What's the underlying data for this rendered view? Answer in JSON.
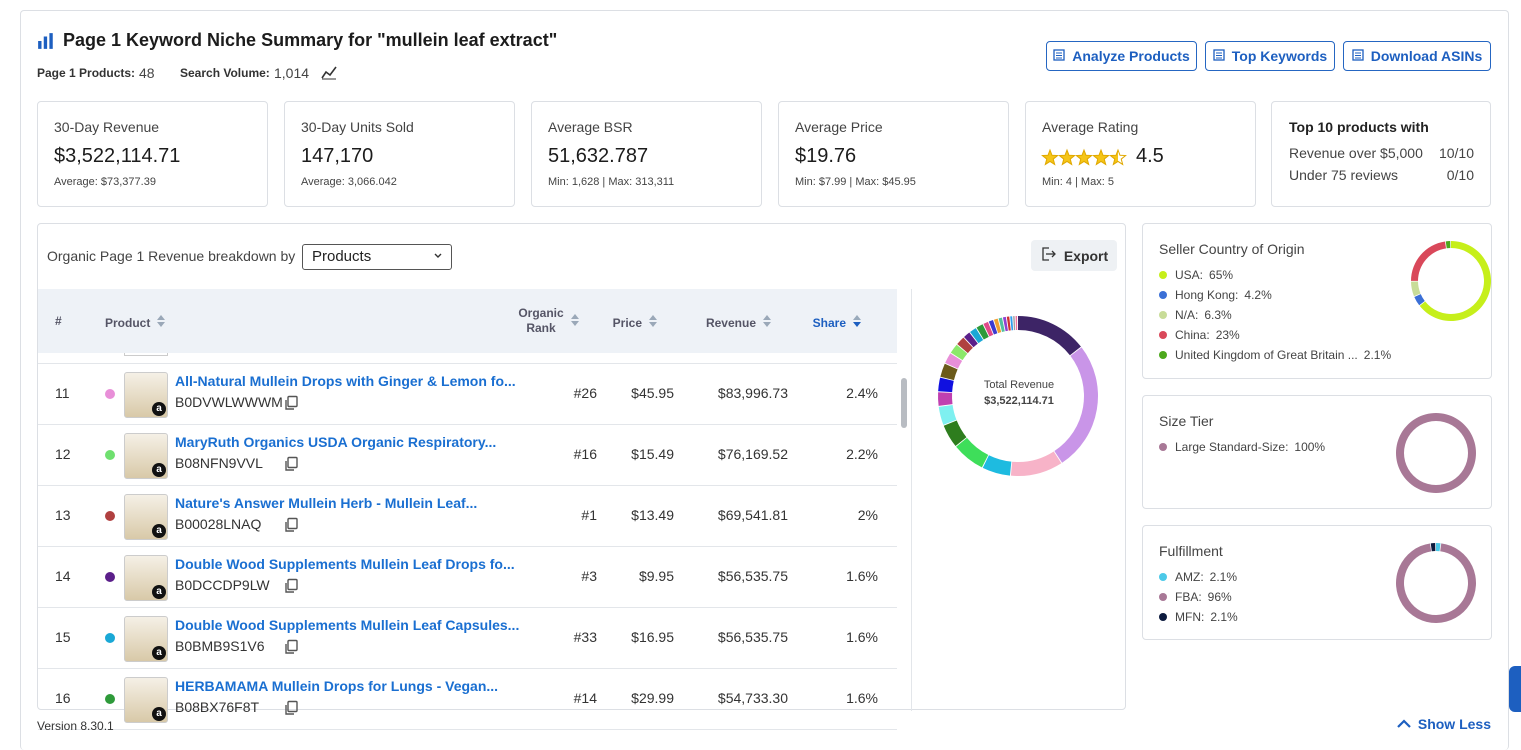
{
  "header": {
    "title": "Page 1 Keyword Niche Summary for \"mullein leaf extract\"",
    "products_label": "Page 1 Products:",
    "products": "48",
    "volume_label": "Search Volume:",
    "volume": "1,014"
  },
  "buttons": [
    "Analyze Products",
    "Top Keywords",
    "Download ASINs"
  ],
  "stats": [
    {
      "label": "30-Day Revenue",
      "value": "$3,522,114.71",
      "sub": "Average: $73,377.39"
    },
    {
      "label": "30-Day Units Sold",
      "value": "147,170",
      "sub": "Average: 3,066.042"
    },
    {
      "label": "Average BSR",
      "value": "51,632.787",
      "sub": "Min: 1,628 | Max: 313,311"
    },
    {
      "label": "Average Price",
      "value": "$19.76",
      "sub": "Min: $7.99 | Max: $45.95"
    },
    {
      "label": "Average Rating",
      "value": 4.5,
      "sub": "Min: 4 | Max: 5"
    }
  ],
  "top10": {
    "title": "Top 10 products with",
    "rows": [
      {
        "label": "Revenue over $5,000",
        "value": "10/10"
      },
      {
        "label": "Under 75 reviews",
        "value": "0/10"
      }
    ]
  },
  "breakdown": {
    "label": "Organic Page 1 Revenue breakdown by",
    "select": "Products",
    "export": "Export"
  },
  "table": {
    "columns": [
      "#",
      "Product",
      "Organic Rank",
      "Price",
      "Revenue",
      "Share"
    ],
    "rows": [
      {
        "num": "11",
        "color": "#e88fd8",
        "title": "All-Natural Mullein Drops with Ginger & Lemon fo...",
        "asin": "B0DVWLWWWM",
        "rank": "#26",
        "price": "$45.95",
        "revenue": "$83,996.73",
        "share": "2.4%"
      },
      {
        "num": "12",
        "color": "#6fe06f",
        "title": "MaryRuth Organics USDA Organic Respiratory...",
        "asin": "B08NFN9VVL",
        "rank": "#16",
        "price": "$15.49",
        "revenue": "$76,169.52",
        "share": "2.2%"
      },
      {
        "num": "13",
        "color": "#b04040",
        "title": "Nature's Answer Mullein Herb - Mullein Leaf...",
        "asin": "B00028LNAQ",
        "rank": "#1",
        "price": "$13.49",
        "revenue": "$69,541.81",
        "share": "2%"
      },
      {
        "num": "14",
        "color": "#5b1f8a",
        "title": "Double Wood Supplements Mullein Leaf Drops fo...",
        "asin": "B0DCCDP9LW",
        "rank": "#3",
        "price": "$9.95",
        "revenue": "$56,535.75",
        "share": "1.6%"
      },
      {
        "num": "15",
        "color": "#1aa8d6",
        "title": "Double Wood Supplements Mullein Leaf Capsules...",
        "asin": "B0BMB9S1V6",
        "rank": "#33",
        "price": "$16.95",
        "revenue": "$56,535.75",
        "share": "1.6%"
      },
      {
        "num": "16",
        "color": "#2e9a3a",
        "title": "HERBAMAMA Mullein Drops for Lungs - Vegan...",
        "asin": "B08BX76F8T",
        "rank": "#14",
        "price": "$29.99",
        "revenue": "$54,733.30",
        "share": "1.6%"
      }
    ]
  },
  "revenue_chart": {
    "center_label": "Total Revenue",
    "center_value": "$3,522,114.71",
    "segments": [
      {
        "color": "#3d2466",
        "value": 15
      },
      {
        "color": "#c995e8",
        "value": 27
      },
      {
        "color": "#f7b3c8",
        "value": 11
      },
      {
        "color": "#1ebbe0",
        "value": 6
      },
      {
        "color": "#3ede5a",
        "value": 7
      },
      {
        "color": "#2e7d1e",
        "value": 5
      },
      {
        "color": "#7ef0f0",
        "value": 4
      },
      {
        "color": "#c040b0",
        "value": 3
      },
      {
        "color": "#1010e0",
        "value": 3
      },
      {
        "color": "#6b5a1a",
        "value": 3
      },
      {
        "color": "#e88fd8",
        "value": 2.4
      },
      {
        "color": "#8ce86b",
        "value": 2.2
      },
      {
        "color": "#b04040",
        "value": 2
      },
      {
        "color": "#5b1f8a",
        "value": 1.6
      },
      {
        "color": "#1aa8d6",
        "value": 1.6
      },
      {
        "color": "#2e9a3a",
        "value": 1.6
      },
      {
        "color": "#e04a8a",
        "value": 1.2
      },
      {
        "color": "#3a3ad0",
        "value": 1.1
      },
      {
        "color": "#f0a030",
        "value": 1
      },
      {
        "color": "#50c0a0",
        "value": 0.9
      },
      {
        "color": "#9040d0",
        "value": 0.8
      },
      {
        "color": "#d03030",
        "value": 0.7
      },
      {
        "color": "#30a0f0",
        "value": 0.6
      },
      {
        "color": "#a0a0a0",
        "value": 0.5
      },
      {
        "color": "#f070a0",
        "value": 0.5
      }
    ]
  },
  "side_charts": [
    {
      "title": "Seller Country of Origin",
      "items": [
        {
          "name": "USA:",
          "color": "#c6ef1a",
          "value": 65,
          "label": "65%"
        },
        {
          "name": "Hong Kong:",
          "color": "#3b6fd6",
          "value": 4.2,
          "label": "4.2%"
        },
        {
          "name": "N/A:",
          "color": "#c8dc98",
          "value": 6.3,
          "label": "6.3%"
        },
        {
          "name": "China:",
          "color": "#d9485a",
          "value": 23,
          "label": "23%"
        },
        {
          "name": "United Kingdom of Great Britain ...",
          "color": "#4ca81c",
          "value": 2.1,
          "label": "2.1%"
        }
      ]
    },
    {
      "title": "Size Tier",
      "items": [
        {
          "name": "Large Standard-Size:",
          "color": "#a87896",
          "value": 100,
          "label": "100%"
        }
      ]
    },
    {
      "title": "Fulfillment",
      "items": [
        {
          "name": "AMZ:",
          "color": "#4cc9e8",
          "value": 2.1,
          "label": "2.1%"
        },
        {
          "name": "FBA:",
          "color": "#a87896",
          "value": 96,
          "label": "96%"
        },
        {
          "name": "MFN:",
          "color": "#0d1b3e",
          "value": 2.1,
          "label": "2.1%"
        }
      ]
    }
  ],
  "footer": {
    "version": "Version 8.30.1",
    "toggle": "Show Less"
  }
}
